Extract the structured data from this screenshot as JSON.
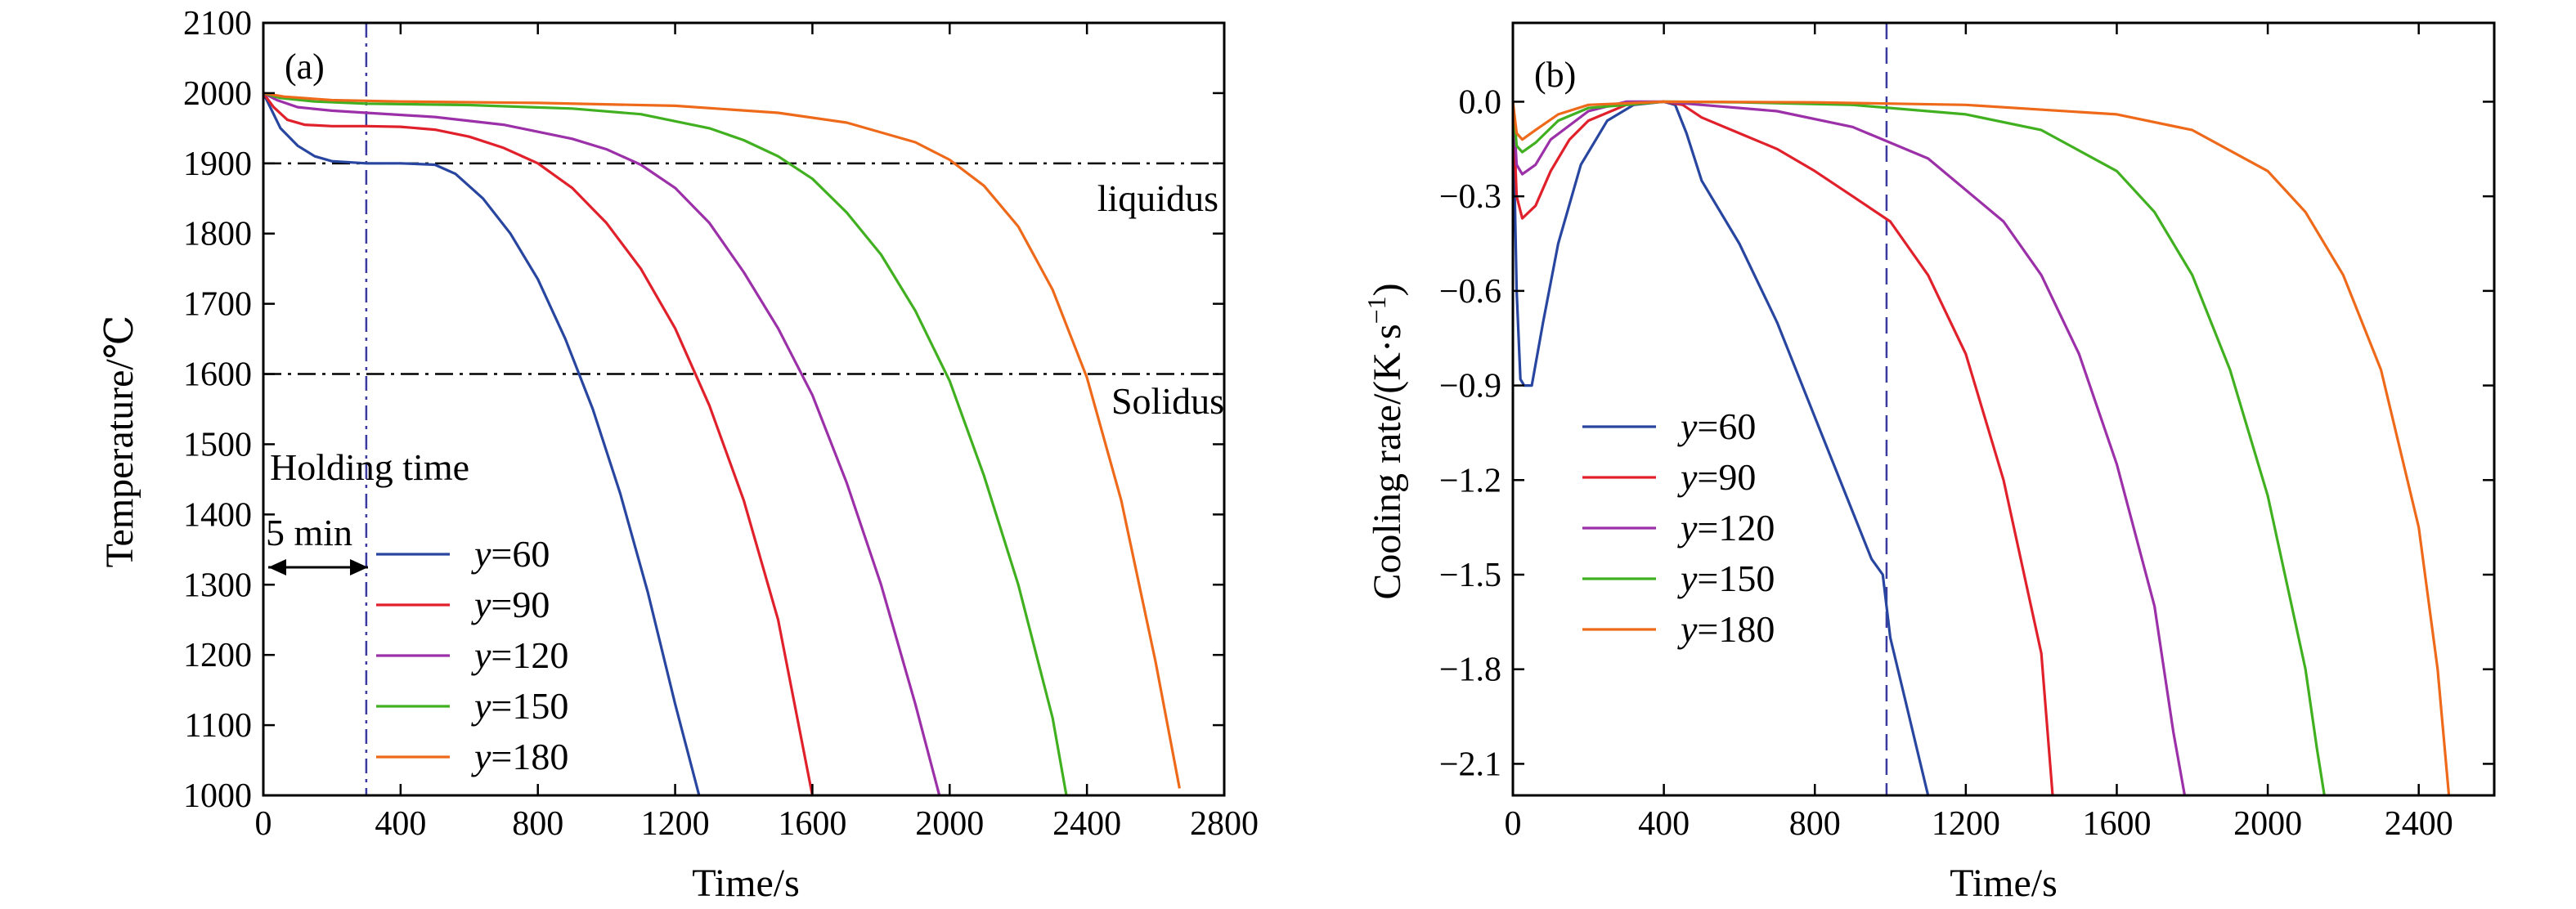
{
  "chart_data": [
    {
      "panel": "(a)",
      "type": "line",
      "xlabel": "Time/s",
      "ylabel": "Temperature/℃",
      "xlim": [
        0,
        2800
      ],
      "ylim": [
        1000,
        2100
      ],
      "xticks": [
        0,
        400,
        800,
        1200,
        1600,
        2000,
        2400,
        2800
      ],
      "yticks": [
        1000,
        1100,
        1200,
        1300,
        1400,
        1500,
        1600,
        1700,
        1800,
        1900,
        2000,
        2100
      ],
      "grid": false,
      "legend": "lower-left",
      "hlines": [
        {
          "y": 1900,
          "label": "liquidus",
          "style": "dash-dot"
        },
        {
          "y": 1600,
          "label": "Solidus",
          "style": "dash-dot"
        }
      ],
      "vline": {
        "x": 300,
        "style": "dash-dot",
        "color": "#3a3aa0"
      },
      "annotations": {
        "holding": "Holding time",
        "duration": "5 min"
      },
      "series": [
        {
          "name": "y=60",
          "legend_var": "y",
          "legend_val": "=60",
          "color": "#2846a0",
          "x": [
            0,
            20,
            50,
            100,
            150,
            200,
            300,
            400,
            500,
            560,
            640,
            720,
            800,
            880,
            960,
            1040,
            1120,
            1200,
            1270
          ],
          "y": [
            2000,
            1980,
            1950,
            1925,
            1910,
            1903,
            1900,
            1900,
            1898,
            1885,
            1850,
            1800,
            1735,
            1650,
            1550,
            1430,
            1290,
            1130,
            1000
          ]
        },
        {
          "name": "y=90",
          "legend_var": "y",
          "legend_val": "=90",
          "color": "#e0202a",
          "x": [
            0,
            30,
            70,
            120,
            200,
            300,
            400,
            500,
            600,
            700,
            800,
            900,
            1000,
            1100,
            1200,
            1300,
            1400,
            1500,
            1600
          ],
          "y": [
            2000,
            1980,
            1962,
            1955,
            1953,
            1953,
            1952,
            1948,
            1938,
            1922,
            1900,
            1865,
            1815,
            1750,
            1665,
            1555,
            1420,
            1250,
            1000
          ]
        },
        {
          "name": "y=120",
          "legend_var": "y",
          "legend_val": "=120",
          "color": "#9b30a8",
          "x": [
            0,
            40,
            100,
            200,
            300,
            500,
            700,
            900,
            1000,
            1100,
            1200,
            1300,
            1400,
            1500,
            1600,
            1700,
            1800,
            1900,
            1970
          ],
          "y": [
            2000,
            1990,
            1980,
            1975,
            1972,
            1966,
            1955,
            1935,
            1920,
            1898,
            1865,
            1815,
            1745,
            1665,
            1570,
            1445,
            1300,
            1130,
            1000
          ]
        },
        {
          "name": "y=150",
          "legend_var": "y",
          "legend_val": "=150",
          "color": "#40b020",
          "x": [
            0,
            50,
            150,
            300,
            600,
            900,
            1100,
            1300,
            1400,
            1500,
            1600,
            1700,
            1800,
            1900,
            2000,
            2100,
            2200,
            2300,
            2340
          ],
          "y": [
            2000,
            1993,
            1988,
            1985,
            1983,
            1978,
            1970,
            1950,
            1933,
            1910,
            1878,
            1830,
            1770,
            1690,
            1590,
            1455,
            1300,
            1110,
            1000
          ]
        },
        {
          "name": "y=180",
          "legend_var": "y",
          "legend_val": "=180",
          "color": "#ee6a1a",
          "x": [
            0,
            60,
            200,
            400,
            800,
            1200,
            1500,
            1700,
            1900,
            2000,
            2100,
            2200,
            2300,
            2400,
            2500,
            2600,
            2670
          ],
          "y": [
            2000,
            1995,
            1990,
            1988,
            1986,
            1982,
            1972,
            1958,
            1930,
            1905,
            1868,
            1810,
            1720,
            1595,
            1420,
            1190,
            1010
          ]
        }
      ]
    },
    {
      "panel": "(b)",
      "type": "line",
      "xlabel": "Time/s",
      "ylabel": "Cooling rate/(K·s",
      "ylabel_sup": "−1",
      "ylabel_end": ")",
      "xlim": [
        0,
        2600
      ],
      "ylim": [
        -2.2,
        0.25
      ],
      "xticks": [
        0,
        400,
        800,
        1200,
        1600,
        2000,
        2400
      ],
      "yticks": [
        0.0,
        -0.3,
        -0.6,
        -0.9,
        -1.2,
        -1.5,
        -1.8,
        -2.1
      ],
      "ytick_labels": [
        "0.0",
        "−0.3",
        "−0.6",
        "−0.9",
        "−1.2",
        "−1.5",
        "−1.8",
        "−2.1"
      ],
      "grid": false,
      "legend": "lower-left",
      "vline": {
        "x": 990,
        "style": "dashed",
        "color": "#3a3aa0"
      },
      "series": [
        {
          "name": "y=60",
          "legend_var": "y",
          "legend_val": "=60",
          "color": "#2846a0",
          "x": [
            0,
            10,
            20,
            30,
            50,
            80,
            120,
            180,
            250,
            320,
            400,
            430,
            460,
            500,
            600,
            700,
            800,
            900,
            950,
            980,
            1000,
            1040,
            1070,
            1100
          ],
          "y": [
            0,
            -0.6,
            -0.88,
            -0.9,
            -0.9,
            -0.7,
            -0.45,
            -0.2,
            -0.06,
            -0.01,
            0,
            -0.01,
            -0.1,
            -0.25,
            -0.45,
            -0.7,
            -1.0,
            -1.3,
            -1.45,
            -1.5,
            -1.7,
            -1.9,
            -2.05,
            -2.2
          ]
        },
        {
          "name": "y=90",
          "legend_var": "y",
          "legend_val": "=90",
          "color": "#e0202a",
          "x": [
            0,
            10,
            25,
            60,
            100,
            150,
            200,
            300,
            400,
            450,
            500,
            600,
            700,
            800,
            900,
            1000,
            1100,
            1200,
            1300,
            1400,
            1420,
            1430
          ],
          "y": [
            0,
            -0.3,
            -0.37,
            -0.33,
            -0.22,
            -0.12,
            -0.06,
            -0.01,
            0,
            -0.01,
            -0.05,
            -0.1,
            -0.15,
            -0.22,
            -0.3,
            -0.38,
            -0.55,
            -0.8,
            -1.2,
            -1.75,
            -2.05,
            -2.2
          ]
        },
        {
          "name": "y=120",
          "legend_var": "y",
          "legend_val": "=120",
          "color": "#9b30a8",
          "x": [
            0,
            10,
            25,
            60,
            100,
            200,
            300,
            400,
            500,
            700,
            900,
            1100,
            1300,
            1400,
            1500,
            1600,
            1700,
            1750,
            1780
          ],
          "y": [
            0,
            -0.2,
            -0.23,
            -0.2,
            -0.12,
            -0.03,
            0,
            0,
            -0.01,
            -0.03,
            -0.08,
            -0.18,
            -0.38,
            -0.55,
            -0.8,
            -1.15,
            -1.6,
            -2.0,
            -2.2
          ]
        },
        {
          "name": "y=150",
          "legend_var": "y",
          "legend_val": "=150",
          "color": "#40b020",
          "x": [
            0,
            10,
            25,
            60,
            120,
            200,
            400,
            600,
            900,
            1200,
            1400,
            1600,
            1700,
            1800,
            1900,
            2000,
            2100,
            2130,
            2150
          ],
          "y": [
            0,
            -0.14,
            -0.16,
            -0.13,
            -0.06,
            -0.02,
            0,
            -0.002,
            -0.01,
            -0.04,
            -0.09,
            -0.22,
            -0.35,
            -0.55,
            -0.85,
            -1.25,
            -1.8,
            -2.05,
            -2.2
          ]
        },
        {
          "name": "y=180",
          "legend_var": "y",
          "legend_val": "=180",
          "color": "#ee6a1a",
          "x": [
            0,
            10,
            25,
            60,
            120,
            200,
            400,
            800,
            1200,
            1600,
            1800,
            2000,
            2100,
            2200,
            2300,
            2400,
            2450,
            2480
          ],
          "y": [
            0,
            -0.1,
            -0.12,
            -0.09,
            -0.04,
            -0.01,
            0,
            -0.002,
            -0.01,
            -0.04,
            -0.09,
            -0.22,
            -0.35,
            -0.55,
            -0.85,
            -1.35,
            -1.8,
            -2.2
          ]
        }
      ]
    }
  ]
}
